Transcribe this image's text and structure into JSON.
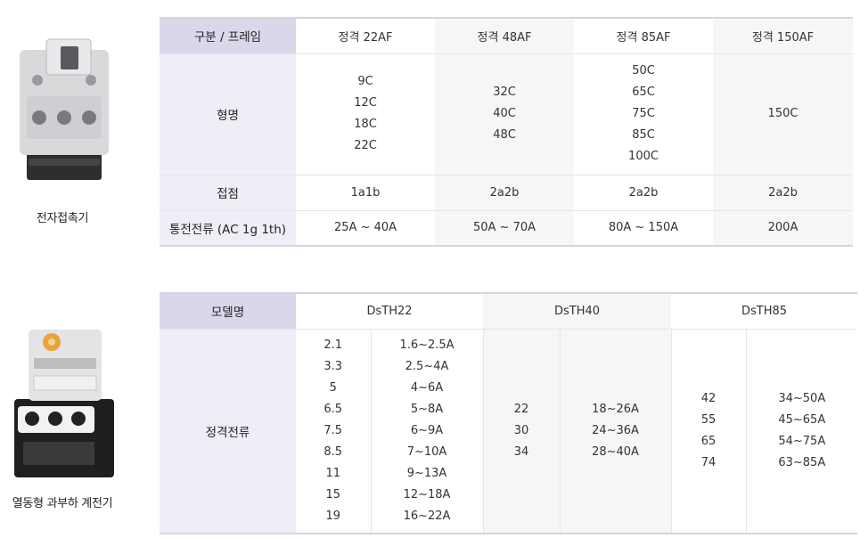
{
  "products": [
    {
      "name": "전자접촉기",
      "table": {
        "header_label": "구분 / 프레임",
        "columns": [
          "정격 22AF",
          "정격 48AF",
          "정격 85AF",
          "정격 150AF"
        ],
        "rows": [
          {
            "label": "형명",
            "cells": [
              [
                "9C",
                "12C",
                "18C",
                "22C"
              ],
              [
                "32C",
                "40C",
                "48C"
              ],
              [
                "50C",
                "65C",
                "75C",
                "85C",
                "100C"
              ],
              [
                "150C"
              ]
            ]
          },
          {
            "label": "접점",
            "cells": [
              [
                "1a1b"
              ],
              [
                "2a2b"
              ],
              [
                "2a2b"
              ],
              [
                "2a2b"
              ]
            ]
          },
          {
            "label": "통전전류 (AC 1g 1th)",
            "cells": [
              [
                "25A ~ 40A"
              ],
              [
                "50A ~ 70A"
              ],
              [
                "80A ~ 150A"
              ],
              [
                "200A"
              ]
            ]
          }
        ]
      }
    },
    {
      "name": "열동형 과부하 계전기",
      "table": {
        "header_label": "모델명",
        "models": [
          "DsTH22",
          "DsTH40",
          "DsTH85"
        ],
        "row_label": "정격전류",
        "groups": [
          {
            "values": [
              "2.1",
              "3.3",
              "5",
              "6.5",
              "7.5",
              "8.5",
              "11",
              "15",
              "19"
            ],
            "ranges": [
              "1.6~2.5A",
              "2.5~4A",
              "4~6A",
              "5~8A",
              "6~9A",
              "7~10A",
              "9~13A",
              "12~18A",
              "16~22A"
            ]
          },
          {
            "values": [
              "22",
              "30",
              "34"
            ],
            "ranges": [
              "18~26A",
              "24~36A",
              "28~40A"
            ]
          },
          {
            "values": [
              "42",
              "55",
              "65",
              "74"
            ],
            "ranges": [
              "34~50A",
              "45~65A",
              "54~75A",
              "63~85A"
            ]
          }
        ]
      }
    }
  ]
}
